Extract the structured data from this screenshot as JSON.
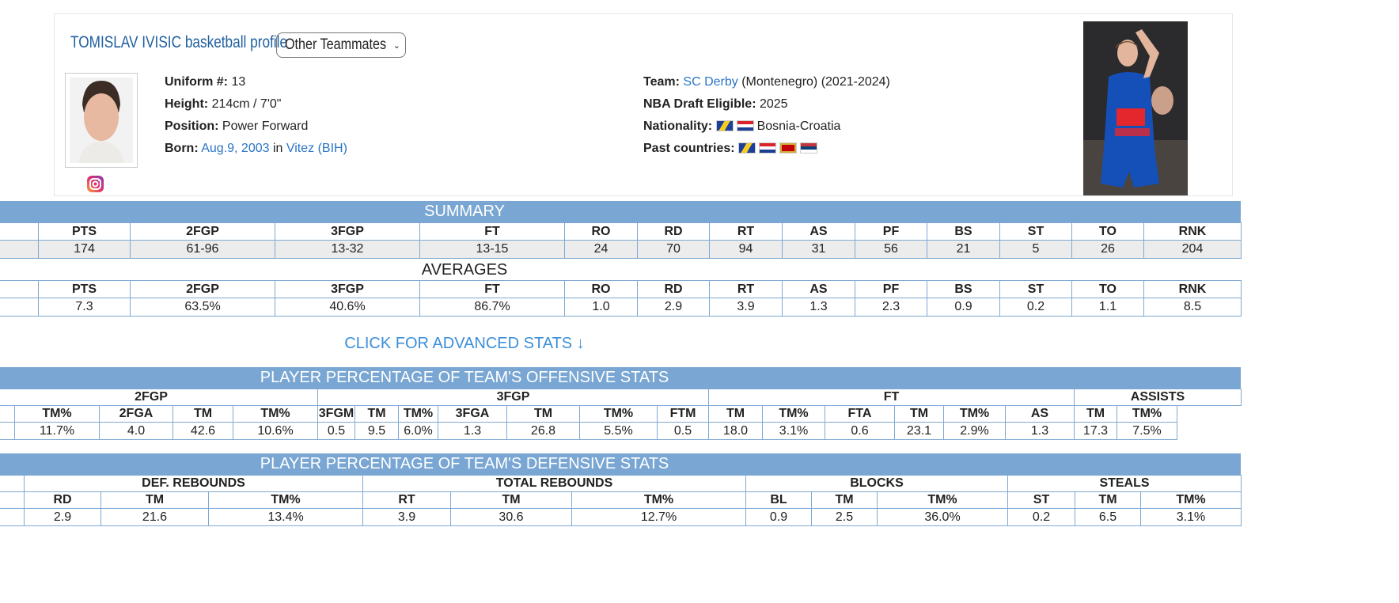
{
  "profile": {
    "title": "TOMISLAV IVISIC basketball profile",
    "select": "Other Teammates",
    "left": [
      {
        "label": "Uniform #:",
        "parts": [
          {
            "text": "13"
          }
        ]
      },
      {
        "label": "Height:",
        "parts": [
          {
            "text": "214cm / 7'0\""
          }
        ]
      },
      {
        "label": "Position:",
        "parts": [
          {
            "text": "Power Forward"
          }
        ]
      },
      {
        "label": "Born:",
        "parts": [
          {
            "text": "Aug.9, 2003",
            "link": true
          },
          {
            "text": " in "
          },
          {
            "text": "Vitez (BIH)",
            "link": true
          }
        ]
      }
    ],
    "right": [
      {
        "label": "Team:",
        "parts": [
          {
            "text": "SC Derby",
            "link": true
          },
          {
            "text": " (Montenegro) (2021-2024)"
          }
        ]
      },
      {
        "label": "NBA Draft Eligible:",
        "parts": [
          {
            "text": "2025"
          }
        ]
      },
      {
        "label": "Nationality:",
        "parts": [
          {
            "text": "Bosnia-Croatia"
          }
        ]
      },
      {
        "label": "Past countries:",
        "parts": []
      }
    ]
  },
  "summary": {
    "title": "SUMMARY",
    "headers": [
      "PTS",
      "2FGP",
      "3FGP",
      "FT",
      "RO",
      "RD",
      "RT",
      "AS",
      "PF",
      "BS",
      "ST",
      "TO",
      "RNK"
    ],
    "row": [
      "174",
      "61-96",
      "13-32",
      "13-15",
      "24",
      "70",
      "94",
      "31",
      "56",
      "21",
      "5",
      "26",
      "204"
    ]
  },
  "averages": {
    "title": "AVERAGES",
    "headers": [
      "PTS",
      "2FGP",
      "3FGP",
      "FT",
      "RO",
      "RD",
      "RT",
      "AS",
      "PF",
      "BS",
      "ST",
      "TO",
      "RNK"
    ],
    "row": [
      "7.3",
      "63.5%",
      "40.6%",
      "86.7%",
      "1.0",
      "2.9",
      "3.9",
      "1.3",
      "2.3",
      "0.9",
      "0.2",
      "1.1",
      "8.5"
    ]
  },
  "advanced_link": "CLICK FOR ADVANCED STATS ↓",
  "offensive": {
    "title": "PLAYER PERCENTAGE OF TEAM'S OFFENSIVE STATS",
    "groups": [
      "2FGP",
      "3FGP",
      "FT",
      "ASSISTS"
    ],
    "headers": [
      "TM%",
      "2FGA",
      "TM",
      "TM%",
      "3FGM",
      "TM",
      "TM%",
      "3FGA",
      "TM",
      "TM%",
      "FTM",
      "TM",
      "TM%",
      "FTA",
      "TM",
      "TM%",
      "AS",
      "TM",
      "TM%"
    ],
    "row": [
      "11.7%",
      "4.0",
      "42.6",
      "10.6%",
      "0.5",
      "9.5",
      "6.0%",
      "1.3",
      "26.8",
      "5.5%",
      "0.5",
      "18.0",
      "3.1%",
      "0.6",
      "23.1",
      "2.9%",
      "1.3",
      "17.3",
      "7.5%"
    ]
  },
  "defensive": {
    "title": "PLAYER PERCENTAGE OF TEAM'S DEFENSIVE STATS",
    "groups": [
      "DEF. REBOUNDS",
      "TOTAL REBOUNDS",
      "BLOCKS",
      "STEALS"
    ],
    "headers": [
      "RD",
      "TM",
      "TM%",
      "RT",
      "TM",
      "TM%",
      "BL",
      "TM",
      "TM%",
      "ST",
      "TM",
      "TM%"
    ],
    "row": [
      "2.9",
      "21.6",
      "13.4%",
      "3.9",
      "30.6",
      "12.7%",
      "0.9",
      "2.5",
      "36.0%",
      "0.2",
      "6.5",
      "3.1%"
    ]
  }
}
